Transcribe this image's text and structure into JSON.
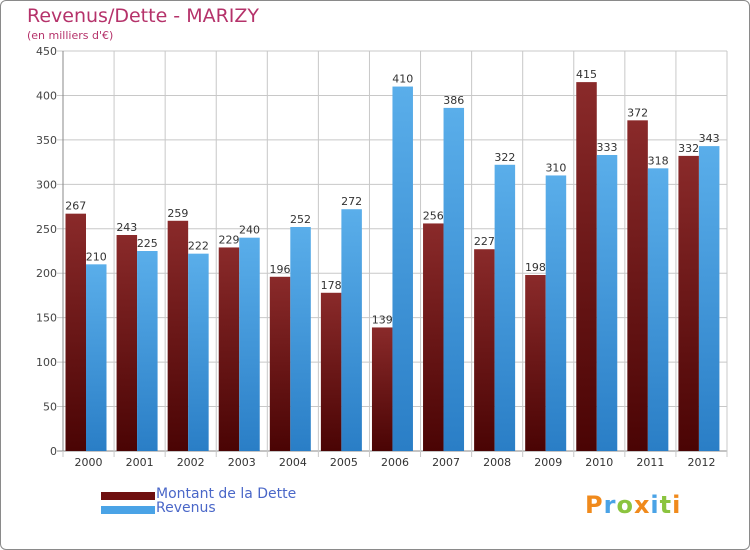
{
  "header": {
    "title": "Revenus/Dette - MARIZY",
    "subtitle": "(en milliers d'€)"
  },
  "chart_data": {
    "type": "bar",
    "title": "Revenus/Dette - MARIZY",
    "subtitle": "(en milliers d'€)",
    "categories": [
      "2000",
      "2001",
      "2002",
      "2003",
      "2004",
      "2005",
      "2006",
      "2007",
      "2008",
      "2009",
      "2010",
      "2011",
      "2012"
    ],
    "series": [
      {
        "name": "Montant de la Dette",
        "color": "#7a1a1a",
        "values": [
          267,
          243,
          259,
          229,
          196,
          178,
          139,
          256,
          227,
          198,
          415,
          372,
          332
        ]
      },
      {
        "name": "Revenus",
        "color": "#4aa3e6",
        "values": [
          210,
          225,
          222,
          240,
          252,
          272,
          410,
          386,
          322,
          310,
          333,
          318,
          343
        ]
      }
    ],
    "yticks": [
      0,
      50,
      100,
      150,
      200,
      250,
      300,
      350,
      400,
      450
    ],
    "ylim": [
      0,
      450
    ],
    "grid": true,
    "legend_position": "bottom-left"
  },
  "legend": [
    {
      "label": "Montant de la Dette",
      "color": "#6e0f0f"
    },
    {
      "label": "Revenus",
      "color": "#4aa3e6"
    }
  ],
  "logo": {
    "text": "Proxiti",
    "letters": [
      "P",
      "r",
      "o",
      "x",
      "i",
      "t",
      "i"
    ],
    "colors": [
      "#f08a1c",
      "#4aa3e6",
      "#8bc43f",
      "#f08a1c",
      "#4aa3e6",
      "#8bc43f",
      "#f08a1c"
    ]
  }
}
